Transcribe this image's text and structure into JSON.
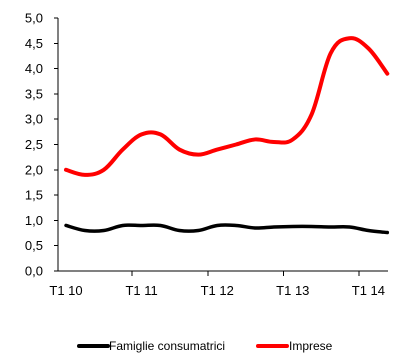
{
  "chart_data": {
    "type": "line",
    "title": "",
    "xlabel": "",
    "ylabel": "",
    "ylim": [
      0,
      5
    ],
    "y_ticks": [
      "0,0",
      "0,5",
      "1,0",
      "1,5",
      "2,0",
      "2,5",
      "3,0",
      "3,5",
      "4,0",
      "4,5",
      "5,0"
    ],
    "x_tick_labels": [
      "T1 10",
      "T1 11",
      "T1 12",
      "T1 13",
      "T1 14"
    ],
    "x": [
      "Q1 2010",
      "Q2 2010",
      "Q3 2010",
      "Q4 2010",
      "Q1 2011",
      "Q2 2011",
      "Q3 2011",
      "Q4 2011",
      "Q1 2012",
      "Q2 2012",
      "Q3 2012",
      "Q4 2012",
      "Q1 2013",
      "Q2 2013",
      "Q3 2013",
      "Q4 2013",
      "Q1 2014",
      "Q2 2014"
    ],
    "grid": false,
    "legend_position": "bottom",
    "series": [
      {
        "name": "Famiglie consumatrici",
        "color": "#000000",
        "values": [
          0.9,
          0.8,
          0.8,
          0.9,
          0.9,
          0.9,
          0.8,
          0.8,
          0.9,
          0.9,
          0.85,
          0.87,
          0.88,
          0.88,
          0.87,
          0.87,
          0.8,
          0.76
        ]
      },
      {
        "name": "Imprese",
        "color": "#ff0000",
        "values": [
          2.0,
          1.9,
          2.0,
          2.4,
          2.7,
          2.7,
          2.4,
          2.3,
          2.4,
          2.5,
          2.6,
          2.55,
          2.6,
          3.1,
          4.3,
          4.6,
          4.4,
          3.9
        ]
      }
    ]
  }
}
